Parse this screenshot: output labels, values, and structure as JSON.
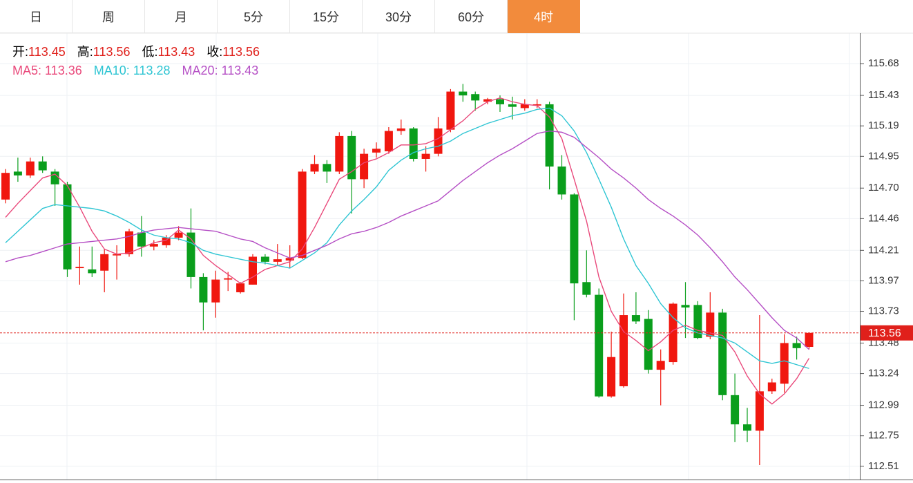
{
  "tabs": {
    "items": [
      "日",
      "周",
      "月",
      "5分",
      "15分",
      "30分",
      "60分",
      "4时"
    ],
    "active": 7
  },
  "chart_data": {
    "type": "candlestick",
    "ohlc_labels": [
      "开:",
      "高:",
      "低:",
      "收:"
    ],
    "ohlc_values": [
      113.45,
      113.56,
      113.43,
      113.56
    ],
    "up_color": "#f0170f",
    "down_color": "#0a9e1c",
    "value_color": "#e0201b",
    "candles": [
      [
        114.61,
        114.85,
        114.58,
        114.82
      ],
      [
        114.83,
        114.94,
        114.75,
        114.8
      ],
      [
        114.8,
        114.94,
        114.78,
        114.91
      ],
      [
        114.91,
        114.95,
        114.82,
        114.84
      ],
      [
        114.83,
        114.85,
        114.56,
        114.73
      ],
      [
        114.73,
        114.75,
        114.0,
        114.06
      ],
      [
        114.07,
        114.24,
        113.94,
        114.08
      ],
      [
        114.06,
        114.24,
        114.0,
        114.03
      ],
      [
        114.05,
        114.22,
        113.88,
        114.18
      ],
      [
        114.17,
        114.25,
        113.98,
        114.18
      ],
      [
        114.18,
        114.38,
        114.16,
        114.36
      ],
      [
        114.35,
        114.48,
        114.16,
        114.24
      ],
      [
        114.24,
        114.29,
        114.21,
        114.26
      ],
      [
        114.25,
        114.33,
        114.23,
        114.31
      ],
      [
        114.31,
        114.4,
        114.29,
        114.35
      ],
      [
        114.35,
        114.54,
        113.91,
        114.0
      ],
      [
        114.0,
        114.03,
        113.58,
        113.8
      ],
      [
        113.8,
        114.05,
        113.68,
        113.98
      ],
      [
        113.98,
        114.04,
        113.89,
        113.99
      ],
      [
        113.88,
        113.96,
        113.87,
        113.95
      ],
      [
        113.94,
        114.18,
        113.94,
        114.16
      ],
      [
        114.16,
        114.18,
        114.1,
        114.12
      ],
      [
        114.12,
        114.26,
        114.09,
        114.14
      ],
      [
        114.13,
        114.25,
        114.07,
        114.15
      ],
      [
        114.15,
        114.85,
        114.14,
        114.83
      ],
      [
        114.83,
        114.96,
        114.81,
        114.89
      ],
      [
        114.89,
        114.92,
        114.74,
        114.83
      ],
      [
        114.83,
        115.14,
        114.81,
        115.11
      ],
      [
        115.11,
        115.15,
        114.5,
        114.77
      ],
      [
        114.77,
        115.01,
        114.7,
        114.97
      ],
      [
        114.98,
        115.06,
        114.94,
        115.01
      ],
      [
        114.99,
        115.18,
        114.97,
        115.15
      ],
      [
        115.15,
        115.24,
        115.12,
        115.17
      ],
      [
        115.17,
        115.18,
        114.91,
        114.93
      ],
      [
        114.93,
        115.03,
        114.83,
        114.97
      ],
      [
        114.97,
        115.26,
        114.95,
        115.17
      ],
      [
        115.16,
        115.48,
        115.14,
        115.46
      ],
      [
        115.46,
        115.52,
        115.38,
        115.43
      ],
      [
        115.44,
        115.46,
        115.31,
        115.39
      ],
      [
        115.38,
        115.41,
        115.36,
        115.4
      ],
      [
        115.4,
        115.43,
        115.3,
        115.36
      ],
      [
        115.36,
        115.42,
        115.24,
        115.34
      ],
      [
        115.33,
        115.4,
        115.31,
        115.36
      ],
      [
        115.35,
        115.4,
        115.33,
        115.36
      ],
      [
        115.36,
        115.38,
        114.69,
        114.87
      ],
      [
        114.87,
        114.96,
        114.61,
        114.65
      ],
      [
        114.65,
        114.66,
        113.66,
        113.95
      ],
      [
        113.96,
        114.21,
        113.84,
        113.86
      ],
      [
        113.86,
        113.91,
        113.05,
        113.06
      ],
      [
        113.06,
        113.57,
        113.05,
        113.37
      ],
      [
        113.14,
        113.87,
        113.13,
        113.7
      ],
      [
        113.7,
        113.88,
        113.63,
        113.65
      ],
      [
        113.67,
        113.74,
        113.24,
        113.27
      ],
      [
        113.27,
        113.43,
        112.99,
        113.34
      ],
      [
        113.33,
        113.8,
        113.31,
        113.79
      ],
      [
        113.78,
        113.96,
        113.52,
        113.76
      ],
      [
        113.78,
        113.81,
        113.51,
        113.52
      ],
      [
        113.53,
        113.88,
        113.51,
        113.72
      ],
      [
        113.72,
        113.75,
        113.03,
        113.07
      ],
      [
        113.07,
        113.24,
        112.7,
        112.84
      ],
      [
        112.84,
        112.97,
        112.7,
        112.79
      ],
      [
        112.79,
        113.7,
        112.52,
        113.1
      ],
      [
        113.1,
        113.2,
        113.08,
        113.17
      ],
      [
        113.16,
        113.55,
        113.09,
        113.48
      ],
      [
        113.48,
        113.53,
        113.35,
        113.44
      ],
      [
        113.45,
        113.56,
        113.43,
        113.56
      ]
    ],
    "series": [
      {
        "name": "MA5:",
        "color": "#e9497b",
        "value": 113.36,
        "values": [
          114.47,
          114.58,
          114.68,
          114.78,
          114.81,
          114.72,
          114.55,
          114.36,
          114.22,
          114.18,
          114.19,
          114.23,
          114.27,
          114.29,
          114.37,
          114.3,
          114.17,
          114.09,
          114.02,
          113.95,
          114.0,
          114.06,
          114.09,
          114.12,
          114.22,
          114.39,
          114.58,
          114.77,
          114.83,
          114.9,
          114.93,
          114.98,
          115.04,
          115.04,
          115.05,
          115.09,
          115.16,
          115.23,
          115.32,
          115.38,
          115.41,
          115.38,
          115.36,
          115.35,
          115.26,
          115.09,
          114.77,
          114.44,
          114.0,
          113.73,
          113.57,
          113.5,
          113.42,
          113.49,
          113.58,
          113.62,
          113.58,
          113.56,
          113.54,
          113.41,
          113.22,
          113.08,
          113.0,
          113.08,
          113.2,
          113.36
        ]
      },
      {
        "name": "MA10:",
        "color": "#2ec5d3",
        "value": 113.28,
        "values": [
          114.27,
          114.36,
          114.45,
          114.54,
          114.57,
          114.56,
          114.55,
          114.54,
          114.52,
          114.48,
          114.43,
          114.37,
          114.33,
          114.31,
          114.3,
          114.27,
          114.21,
          114.18,
          114.16,
          114.14,
          114.12,
          114.11,
          114.09,
          114.07,
          114.13,
          114.19,
          114.27,
          114.41,
          114.52,
          114.61,
          114.71,
          114.84,
          114.92,
          114.98,
          115.01,
          115.03,
          115.07,
          115.13,
          115.17,
          115.21,
          115.24,
          115.27,
          115.29,
          115.32,
          115.33,
          115.27,
          115.15,
          114.98,
          114.77,
          114.55,
          114.3,
          114.09,
          113.95,
          113.79,
          113.68,
          113.6,
          113.56,
          113.54,
          113.52,
          113.48,
          113.41,
          113.34,
          113.32,
          113.34,
          113.31,
          113.28
        ]
      },
      {
        "name": "MA20:",
        "color": "#b54fc5",
        "value": 113.43,
        "values": [
          114.12,
          114.15,
          114.17,
          114.2,
          114.23,
          114.26,
          114.27,
          114.28,
          114.29,
          114.3,
          114.32,
          114.35,
          114.37,
          114.38,
          114.39,
          114.38,
          114.37,
          114.36,
          114.33,
          114.3,
          114.28,
          114.23,
          114.19,
          114.15,
          114.17,
          114.21,
          114.25,
          114.3,
          114.34,
          114.36,
          114.39,
          114.43,
          114.48,
          114.52,
          114.56,
          114.6,
          114.68,
          114.76,
          114.83,
          114.9,
          114.96,
          115.01,
          115.07,
          115.13,
          115.15,
          115.14,
          115.1,
          115.02,
          114.94,
          114.85,
          114.78,
          114.7,
          114.61,
          114.54,
          114.48,
          114.41,
          114.33,
          114.23,
          114.12,
          114.0,
          113.9,
          113.79,
          113.68,
          113.58,
          113.52,
          113.43
        ]
      }
    ],
    "ylim": [
      112.4,
      115.92
    ],
    "yticks": [
      115.68,
      115.43,
      115.19,
      114.95,
      {
        "value": 114.7,
        "label": "114.70"
      },
      114.46,
      114.21,
      113.97,
      113.73,
      113.48,
      113.24,
      112.99,
      112.75,
      112.51
    ],
    "last_price": 113.56,
    "grid": true
  }
}
